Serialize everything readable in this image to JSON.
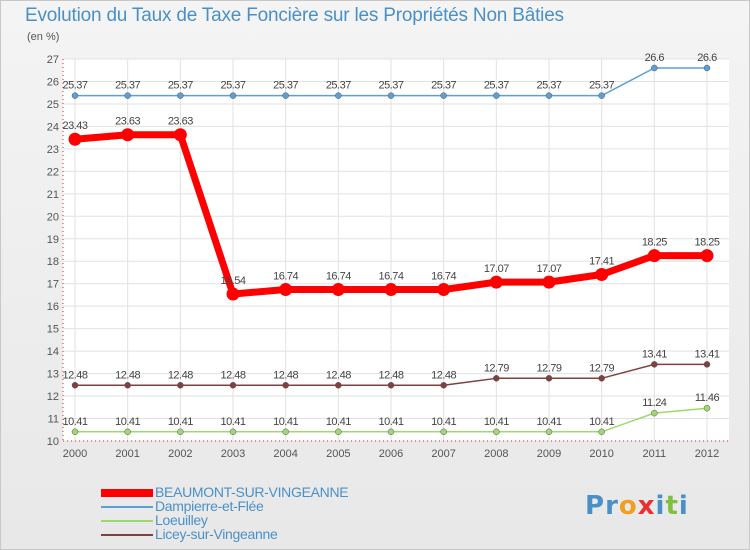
{
  "header": {
    "title": "Evolution du Taux de Taxe Foncière sur les Propriétés Non Bâties",
    "subtitle": "(en %)"
  },
  "logo": {
    "text": "Proxiti",
    "letters": [
      {
        "ch": "P",
        "color": "#4a90c8"
      },
      {
        "ch": "r",
        "color": "#4a90c8"
      },
      {
        "ch": "o",
        "color": "#f0a020"
      },
      {
        "ch": "x",
        "color": "#e83030"
      },
      {
        "ch": "i",
        "color": "#4a90c8"
      },
      {
        "ch": "t",
        "color": "#80c040"
      },
      {
        "ch": "i",
        "color": "#4a90c8"
      }
    ]
  },
  "chart_data": {
    "type": "line",
    "title": "Evolution du Taux de Taxe Foncière sur les Propriétés Non Bâties",
    "ylabel": "(en %)",
    "xlabel": "",
    "ylim": [
      10,
      27
    ],
    "yticks": [
      10,
      11,
      12,
      13,
      14,
      15,
      16,
      17,
      18,
      19,
      20,
      21,
      22,
      23,
      24,
      25,
      26,
      27
    ],
    "categories": [
      "2000",
      "2001",
      "2002",
      "2003",
      "2004",
      "2005",
      "2006",
      "2007",
      "2008",
      "2009",
      "2010",
      "2011",
      "2012"
    ],
    "grid": true,
    "series": [
      {
        "name": "BEAUMONT-SUR-VINGEANNE",
        "color": "#ff0000",
        "bold": true,
        "values": [
          23.43,
          23.63,
          23.63,
          16.54,
          16.74,
          16.74,
          16.74,
          16.74,
          17.07,
          17.07,
          17.41,
          18.25,
          18.25
        ],
        "labels": [
          "23.43",
          "23.63",
          "23.63",
          "16.54",
          "16.74",
          "16.74",
          "16.74",
          "16.74",
          "17.07",
          "17.07",
          "17.41",
          "18.25",
          "18.25"
        ]
      },
      {
        "name": "Dampierre-et-Flée",
        "color": "#5aa0d8",
        "bold": false,
        "values": [
          25.37,
          25.37,
          25.37,
          25.37,
          25.37,
          25.37,
          25.37,
          25.37,
          25.37,
          25.37,
          25.37,
          26.6,
          26.6
        ],
        "labels": [
          "25.37",
          "25.37",
          "25.37",
          "25.37",
          "25.37",
          "25.37",
          "25.37",
          "25.37",
          "25.37",
          "25.37",
          "25.37",
          "26.6",
          "26.6"
        ]
      },
      {
        "name": "Loeuilley",
        "color": "#a0d870",
        "bold": false,
        "values": [
          10.41,
          10.41,
          10.41,
          10.41,
          10.41,
          10.41,
          10.41,
          10.41,
          10.41,
          10.41,
          10.41,
          11.24,
          11.46
        ],
        "labels": [
          "10.41",
          "10.41",
          "10.41",
          "10.41",
          "10.41",
          "10.41",
          "10.41",
          "10.41",
          "10.41",
          "10.41",
          "10.41",
          "11.24",
          "11.46"
        ]
      },
      {
        "name": "Licey-sur-Vingeanne",
        "color": "#804040",
        "bold": false,
        "values": [
          12.48,
          12.48,
          12.48,
          12.48,
          12.48,
          12.48,
          12.48,
          12.48,
          12.79,
          12.79,
          12.79,
          13.41,
          13.41
        ],
        "labels": [
          "12.48",
          "12.48",
          "12.48",
          "12.48",
          "12.48",
          "12.48",
          "12.48",
          "12.48",
          "12.79",
          "12.79",
          "12.79",
          "13.41",
          "13.41"
        ]
      }
    ]
  }
}
